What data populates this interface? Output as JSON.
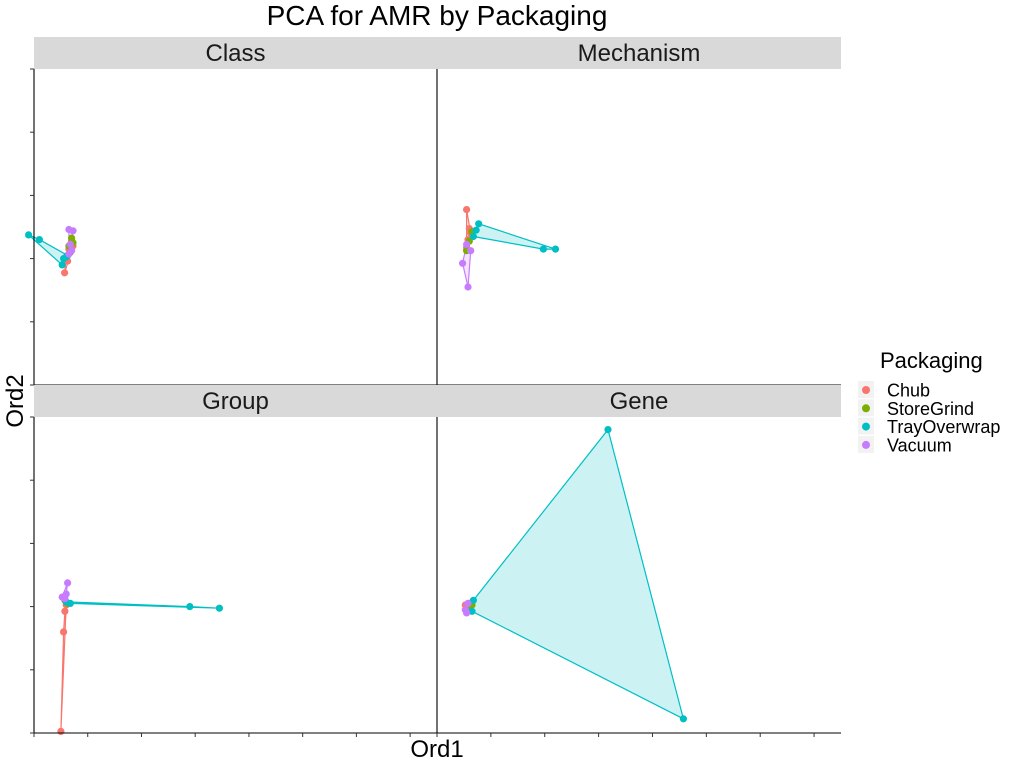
{
  "chart_data": {
    "type": "scatter",
    "title": "PCA for AMR by Packaging",
    "xlabel": "Ord1",
    "ylabel": "Ord2",
    "legend": {
      "title": "Packaging",
      "placement": "right",
      "entries": [
        {
          "name": "Chub",
          "color": "#F8766D"
        },
        {
          "name": "StoreGrind",
          "color": "#7CAE00"
        },
        {
          "name": "TrayOverwrap",
          "color": "#00BFC4"
        },
        {
          "name": "Vacuum",
          "color": "#C77CFF"
        }
      ]
    },
    "axes": {
      "x_range": [
        0,
        15
      ],
      "y_range": [
        0,
        10
      ],
      "tick_labels_shown": false,
      "grid": false
    },
    "facets": [
      {
        "name": "Class",
        "series": [
          {
            "group": "Chub",
            "points": [
              [
                1.14,
                3.55
              ],
              [
                1.25,
                3.92
              ],
              [
                1.3,
                4.3
              ],
              [
                1.4,
                4.55
              ],
              [
                1.45,
                4.4
              ],
              [
                1.2,
                4.05
              ]
            ]
          },
          {
            "group": "StoreGrind",
            "points": [
              [
                1.3,
                4.4
              ],
              [
                1.4,
                4.65
              ],
              [
                1.45,
                4.5
              ],
              [
                1.35,
                4.2
              ]
            ]
          },
          {
            "group": "TrayOverwrap",
            "points": [
              [
                -0.2,
                4.75
              ],
              [
                0.2,
                4.6
              ],
              [
                1.05,
                3.8
              ],
              [
                1.1,
                4.0
              ],
              [
                1.2,
                4.05
              ],
              [
                1.25,
                4.1
              ]
            ]
          },
          {
            "group": "Vacuum",
            "points": [
              [
                1.3,
                4.92
              ],
              [
                1.45,
                4.88
              ],
              [
                1.4,
                4.25
              ],
              [
                1.3,
                4.15
              ],
              [
                1.35,
                4.45
              ]
            ]
          }
        ]
      },
      {
        "name": "Mechanism",
        "series": [
          {
            "group": "Chub",
            "points": [
              [
                1.1,
                5.55
              ],
              [
                1.2,
                4.95
              ],
              [
                1.25,
                4.8
              ],
              [
                1.15,
                4.6
              ],
              [
                1.1,
                4.35
              ]
            ]
          },
          {
            "group": "StoreGrind",
            "points": [
              [
                1.1,
                4.25
              ],
              [
                1.2,
                4.55
              ],
              [
                1.3,
                4.85
              ]
            ]
          },
          {
            "group": "TrayOverwrap",
            "points": [
              [
                1.55,
                5.1
              ],
              [
                1.45,
                4.9
              ],
              [
                1.35,
                4.7
              ],
              [
                3.95,
                4.3
              ],
              [
                4.4,
                4.3
              ]
            ]
          },
          {
            "group": "Vacuum",
            "points": [
              [
                0.95,
                3.85
              ],
              [
                1.15,
                3.1
              ],
              [
                1.25,
                4.25
              ],
              [
                1.1,
                4.45
              ]
            ]
          }
        ]
      },
      {
        "name": "Group",
        "series": [
          {
            "group": "Chub",
            "points": [
              [
                1.0,
                0.05
              ],
              [
                1.1,
                3.2
              ],
              [
                1.15,
                3.85
              ],
              [
                1.2,
                4.05
              ]
            ]
          },
          {
            "group": "StoreGrind",
            "points": [
              [
                1.15,
                4.2
              ],
              [
                1.25,
                4.1
              ]
            ]
          },
          {
            "group": "TrayOverwrap",
            "points": [
              [
                1.2,
                4.15
              ],
              [
                1.35,
                4.1
              ],
              [
                5.8,
                4.0
              ],
              [
                6.9,
                3.95
              ]
            ]
          },
          {
            "group": "Vacuum",
            "points": [
              [
                1.25,
                4.75
              ],
              [
                1.2,
                4.4
              ],
              [
                1.05,
                4.3
              ],
              [
                1.15,
                4.25
              ]
            ]
          }
        ]
      },
      {
        "name": "Gene",
        "series": [
          {
            "group": "Chub",
            "points": [
              [
                1.05,
                4.05
              ],
              [
                1.1,
                3.95
              ],
              [
                1.2,
                4.1
              ],
              [
                1.15,
                3.9
              ]
            ]
          },
          {
            "group": "StoreGrind",
            "points": [
              [
                1.2,
                4.0
              ],
              [
                1.3,
                4.05
              ]
            ]
          },
          {
            "group": "TrayOverwrap",
            "points": [
              [
                1.35,
                4.2
              ],
              [
                1.3,
                3.85
              ],
              [
                6.35,
                9.6
              ],
              [
                9.15,
                0.45
              ]
            ]
          },
          {
            "group": "Vacuum",
            "points": [
              [
                1.1,
                3.8
              ],
              [
                1.05,
                3.9
              ],
              [
                1.15,
                4.1
              ]
            ]
          }
        ]
      }
    ]
  }
}
